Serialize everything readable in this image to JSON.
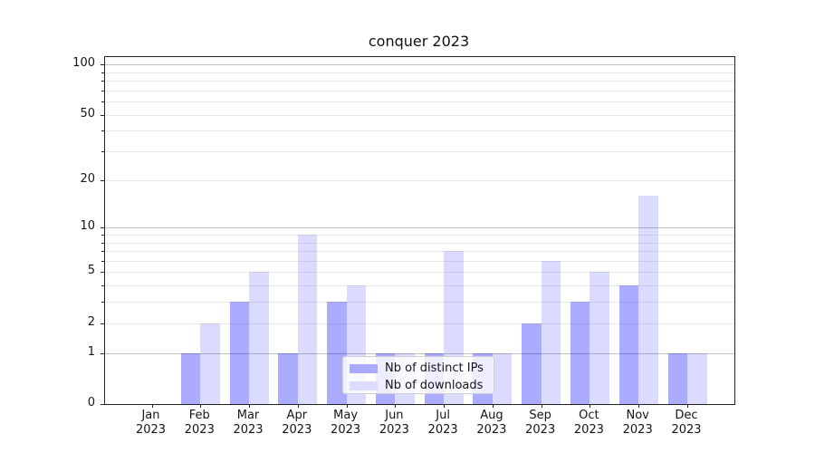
{
  "chart_data": {
    "type": "bar",
    "title": "conquer 2023",
    "categories": [
      "Jan 2023",
      "Feb 2023",
      "Mar 2023",
      "Apr 2023",
      "May 2023",
      "Jun 2023",
      "Jul 2023",
      "Aug 2023",
      "Sep 2023",
      "Oct 2023",
      "Nov 2023",
      "Dec 2023"
    ],
    "x_tick_labels": [
      [
        "Jan",
        "2023"
      ],
      [
        "Feb",
        "2023"
      ],
      [
        "Mar",
        "2023"
      ],
      [
        "Apr",
        "2023"
      ],
      [
        "May",
        "2023"
      ],
      [
        "Jun",
        "2023"
      ],
      [
        "Jul",
        "2023"
      ],
      [
        "Aug",
        "2023"
      ],
      [
        "Sep",
        "2023"
      ],
      [
        "Oct",
        "2023"
      ],
      [
        "Nov",
        "2023"
      ],
      [
        "Dec",
        "2023"
      ]
    ],
    "series": [
      {
        "name": "Nb of distinct IPs",
        "color_hex": "#aaaaff",
        "color_rgba": "rgba(0,0,255,0.33)",
        "values": [
          0,
          1,
          3,
          1,
          3,
          1,
          1,
          1,
          2,
          3,
          4,
          1
        ]
      },
      {
        "name": "Nb of downloads",
        "color_hex": "#dcdcff",
        "color_rgba": "rgba(0,0,255,0.14)",
        "values": [
          0,
          2,
          5,
          9,
          4,
          1,
          7,
          1,
          6,
          5,
          16,
          1
        ]
      }
    ],
    "y_axis": {
      "scale": "log1p",
      "tick_values": [
        0,
        1,
        2,
        5,
        10,
        20,
        50,
        100
      ],
      "tick_labels": [
        "0",
        "1",
        "2",
        "5",
        "10",
        "20",
        "50",
        "100"
      ],
      "minor_tick_values": [
        3,
        4,
        6,
        7,
        8,
        9,
        30,
        40,
        60,
        70,
        80,
        90
      ],
      "dark_gridline_values": [
        1,
        10,
        100
      ],
      "ylim": [
        0,
        110
      ],
      "grid": "horizontal"
    },
    "legend": {
      "position": "lower center",
      "entries": [
        "Nb of distinct IPs",
        "Nb of downloads"
      ]
    },
    "colors": {
      "bar_distinct_ips": "#aaaaff",
      "bar_downloads": "#dcdcff",
      "gridline_minor": "#e9e9e9",
      "gridline_major": "#c2c2c2",
      "axis": "#222222",
      "background": "#ffffff"
    }
  }
}
